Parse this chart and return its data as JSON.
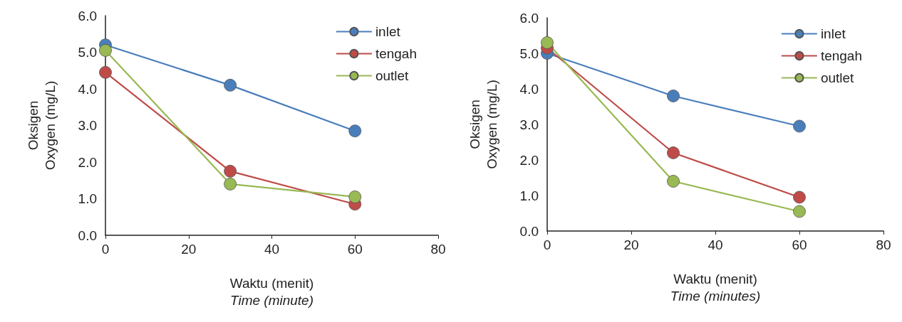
{
  "chart_data": [
    {
      "type": "line",
      "xlabel": "Waktu (menit)\nTime (minute)",
      "ylabel": "Oksigen\nOxygen (mg/L)",
      "x": [
        0,
        30,
        60
      ],
      "xlim": [
        0,
        80
      ],
      "xticks": [
        0,
        20,
        40,
        60,
        80
      ],
      "ylim": [
        0,
        6
      ],
      "yticks": [
        {
          "value": 0,
          "label": "0.0"
        },
        {
          "value": 1,
          "label": "1.0"
        },
        {
          "value": 2,
          "label": "2.0"
        },
        {
          "value": 3,
          "label": "3.0"
        },
        {
          "value": 4,
          "label": "4.0"
        },
        {
          "value": 5,
          "label": "5.0"
        },
        {
          "value": 6,
          "label": "6.0"
        }
      ],
      "grid": false,
      "legend": "top right",
      "marker": "circle",
      "line_style": "solid",
      "series": [
        {
          "name": "inlet",
          "color": "#4a7ebb",
          "values": [
            5.2,
            4.1,
            2.85
          ]
        },
        {
          "name": "tengah",
          "color": "#be4b48",
          "values": [
            4.45,
            1.75,
            0.85
          ]
        },
        {
          "name": "outlet",
          "color": "#98b954",
          "values": [
            5.05,
            1.4,
            1.05
          ]
        }
      ]
    },
    {
      "type": "line",
      "xlabel": "Waktu (menit)\nTime (minutes)",
      "ylabel": "Oksigen\nOxygen (mg/L)",
      "x": [
        0,
        30,
        60
      ],
      "xlim": [
        0,
        80
      ],
      "xticks": [
        0,
        20,
        40,
        60,
        80
      ],
      "ylim": [
        0,
        6
      ],
      "yticks": [
        {
          "value": 0,
          "label": "0.0"
        },
        {
          "value": 1,
          "label": "1.0"
        },
        {
          "value": 2,
          "label": "2.0"
        },
        {
          "value": 3,
          "label": "3.0"
        },
        {
          "value": 4,
          "label": "4.0"
        },
        {
          "value": 5,
          "label": "5.0"
        },
        {
          "value": 6,
          "label": "6.0"
        }
      ],
      "grid": false,
      "legend": "top right",
      "marker": "circle",
      "line_style": "solid",
      "series": [
        {
          "name": "inlet",
          "color": "#4a7ebb",
          "values": [
            5.0,
            3.8,
            2.95
          ]
        },
        {
          "name": "tengah",
          "color": "#be4b48",
          "values": [
            5.15,
            2.2,
            0.95
          ]
        },
        {
          "name": "outlet",
          "color": "#98b954",
          "values": [
            5.3,
            1.4,
            0.55
          ]
        }
      ]
    }
  ]
}
